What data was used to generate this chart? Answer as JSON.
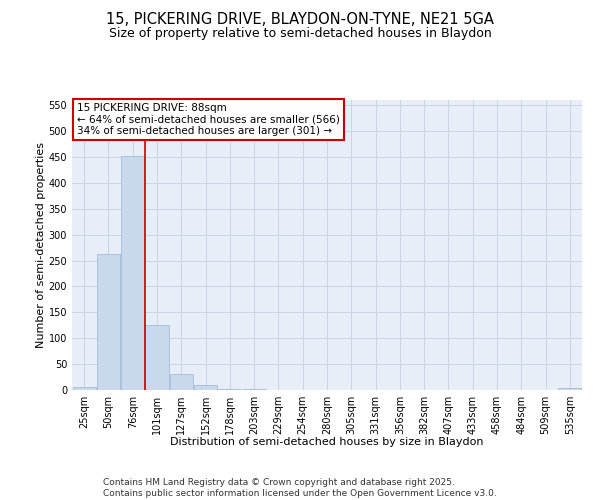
{
  "title_line1": "15, PICKERING DRIVE, BLAYDON-ON-TYNE, NE21 5GA",
  "title_line2": "Size of property relative to semi-detached houses in Blaydon",
  "xlabel": "Distribution of semi-detached houses by size in Blaydon",
  "ylabel": "Number of semi-detached properties",
  "categories": [
    "25sqm",
    "50sqm",
    "76sqm",
    "101sqm",
    "127sqm",
    "152sqm",
    "178sqm",
    "203sqm",
    "229sqm",
    "254sqm",
    "280sqm",
    "305sqm",
    "331sqm",
    "356sqm",
    "382sqm",
    "407sqm",
    "433sqm",
    "458sqm",
    "484sqm",
    "509sqm",
    "535sqm"
  ],
  "values": [
    5,
    262,
    452,
    125,
    30,
    9,
    2,
    1,
    0,
    0,
    0,
    0,
    0,
    0,
    0,
    0,
    0,
    0,
    0,
    0,
    3
  ],
  "bar_color": "#c9d9ed",
  "bar_edge_color": "#9ab5d0",
  "vline_color": "#cc0000",
  "vline_x_index": 2,
  "annotation_line1": "15 PICKERING DRIVE: 88sqm",
  "annotation_line2": "← 64% of semi-detached houses are smaller (566)",
  "annotation_line3": "34% of semi-detached houses are larger (301) →",
  "annotation_box_color": "#ffffff",
  "annotation_box_edge": "#cc0000",
  "ylim": [
    0,
    560
  ],
  "yticks": [
    0,
    50,
    100,
    150,
    200,
    250,
    300,
    350,
    400,
    450,
    500,
    550
  ],
  "grid_color": "#c8d4e8",
  "background_color": "#e8eef8",
  "footer_text": "Contains HM Land Registry data © Crown copyright and database right 2025.\nContains public sector information licensed under the Open Government Licence v3.0.",
  "title_fontsize": 10.5,
  "subtitle_fontsize": 9,
  "axis_label_fontsize": 8,
  "tick_fontsize": 7,
  "annotation_fontsize": 7.5,
  "footer_fontsize": 6.5
}
